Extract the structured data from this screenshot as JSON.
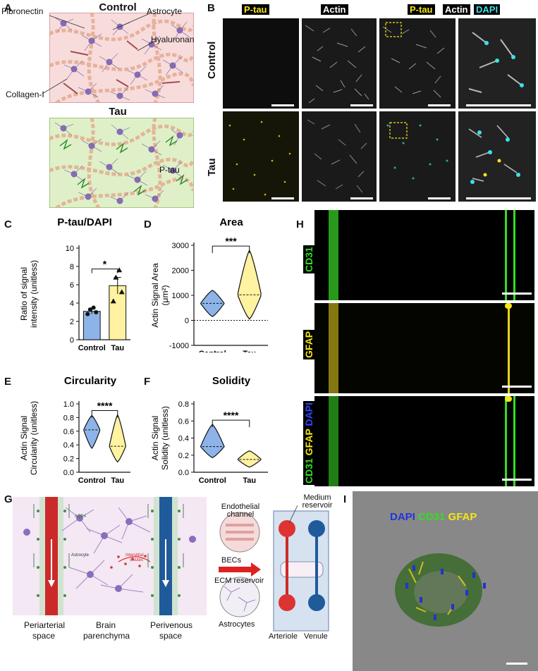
{
  "panels": {
    "a": "A",
    "b": "B",
    "c": "C",
    "d": "D",
    "e": "E",
    "f": "F",
    "g": "G",
    "h": "H",
    "i": "I"
  },
  "panel_a": {
    "control_title": "Control",
    "tau_title": "Tau",
    "labels": {
      "fibronectin": "Fibronectin",
      "astrocyte": "Astrocyte",
      "hyaluronan": "Hyaluronan",
      "collagen": "Collagen-I",
      "ptau": "P-tau"
    }
  },
  "panel_b": {
    "channels": {
      "ptau": "P-tau",
      "actin": "Actin",
      "merge_ptau": "P-tau",
      "merge_actin": "Actin",
      "merge_dapi": "DAPI"
    },
    "rows": {
      "control": "Control",
      "tau": "Tau"
    }
  },
  "chart_data": [
    {
      "panel": "C",
      "type": "bar",
      "title": "P-tau/DAPI",
      "ylabel": "Ratio of signal intensity (unitless)",
      "categories": [
        "Control",
        "Tau"
      ],
      "values": [
        3.1,
        5.9
      ],
      "errors": [
        0.3,
        0.9
      ],
      "points": [
        [
          2.8,
          3.0,
          3.3,
          3.5
        ],
        [
          4.2,
          5.2,
          6.8,
          7.6
        ]
      ],
      "ylim": [
        0,
        10
      ],
      "yticks": [
        "0",
        "2",
        "4",
        "6",
        "8",
        "10"
      ],
      "significance": "*",
      "colors": [
        "#8db4e8",
        "#fff2a0"
      ]
    },
    {
      "panel": "D",
      "type": "violin",
      "title": "Area",
      "ylabel": "Actin Signal Area (μm²)",
      "categories": [
        "Control",
        "Tau"
      ],
      "medians": [
        680,
        1020
      ],
      "ranges": [
        [
          150,
          1200
        ],
        [
          50,
          2800
        ]
      ],
      "ylim": [
        -1000,
        3000
      ],
      "yticks": [
        "-1000",
        "0",
        "1000",
        "2000",
        "3000"
      ],
      "significance": "***",
      "colors": [
        "#8db4e8",
        "#fff2a0"
      ]
    },
    {
      "panel": "E",
      "type": "violin",
      "title": "Circularity",
      "ylabel": "Actin Signal Circularity (unitless)",
      "categories": [
        "Control",
        "Tau"
      ],
      "medians": [
        0.62,
        0.38
      ],
      "ranges": [
        [
          0.35,
          0.83
        ],
        [
          0.15,
          0.84
        ]
      ],
      "ylim": [
        0.0,
        1.0
      ],
      "yticks": [
        "0.0",
        "0.2",
        "0.4",
        "0.6",
        "0.8",
        "1.0"
      ],
      "significance": "****",
      "colors": [
        "#8db4e8",
        "#fff2a0"
      ]
    },
    {
      "panel": "F",
      "type": "violin",
      "title": "Solidity",
      "ylabel": "Actin Signal Solidity (unitless)",
      "categories": [
        "Control",
        "Tau"
      ],
      "medians": [
        0.3,
        0.15
      ],
      "ranges": [
        [
          0.17,
          0.56
        ],
        [
          0.06,
          0.25
        ]
      ],
      "ylim": [
        0.0,
        0.8
      ],
      "yticks": [
        "0.0",
        "0.2",
        "0.4",
        "0.6",
        "0.8"
      ],
      "significance": "****",
      "colors": [
        "#8db4e8",
        "#fff2a0"
      ]
    }
  ],
  "panel_g": {
    "aqp4": "AQP4",
    "astrocyte": "Astrocyte",
    "interstitial_1": "Interstitial",
    "interstitial_2": "solutes",
    "periarterial": "Periarterial",
    "periarterial_2": "space",
    "parenchyma": "Brain",
    "parenchyma_2": "parenchyma",
    "perivenous": "Perivenous",
    "perivenous_2": "space",
    "endothelial_1": "Endothelial",
    "endothelial_2": "channel",
    "becs": "BECs",
    "ecm": "ECM reservoir",
    "astrocytes": "Astrocytes",
    "medium_1": "Medium",
    "medium_2": "reservoir",
    "arteriole": "Arteriole",
    "venule": "Venule"
  },
  "panel_h": {
    "row1": "CD31",
    "row2": "GFAP",
    "row3_a": "CD31",
    "row3_b": "GFAP",
    "row3_c": "DAPI"
  },
  "panel_i": {
    "dapi": "DAPI",
    "cd31": "CD31",
    "gfap": "GFAP"
  },
  "colors": {
    "control_fill": "#8db4e8",
    "tau_fill": "#fff2a0",
    "ptau_yellow": "#f5e51a",
    "dapi_cyan": "#3de0e8",
    "cd31_green": "#33dd22",
    "dapi_blue": "#2233dd",
    "artery_red": "#cc2a2a",
    "vein_blue": "#1f5a9a"
  }
}
